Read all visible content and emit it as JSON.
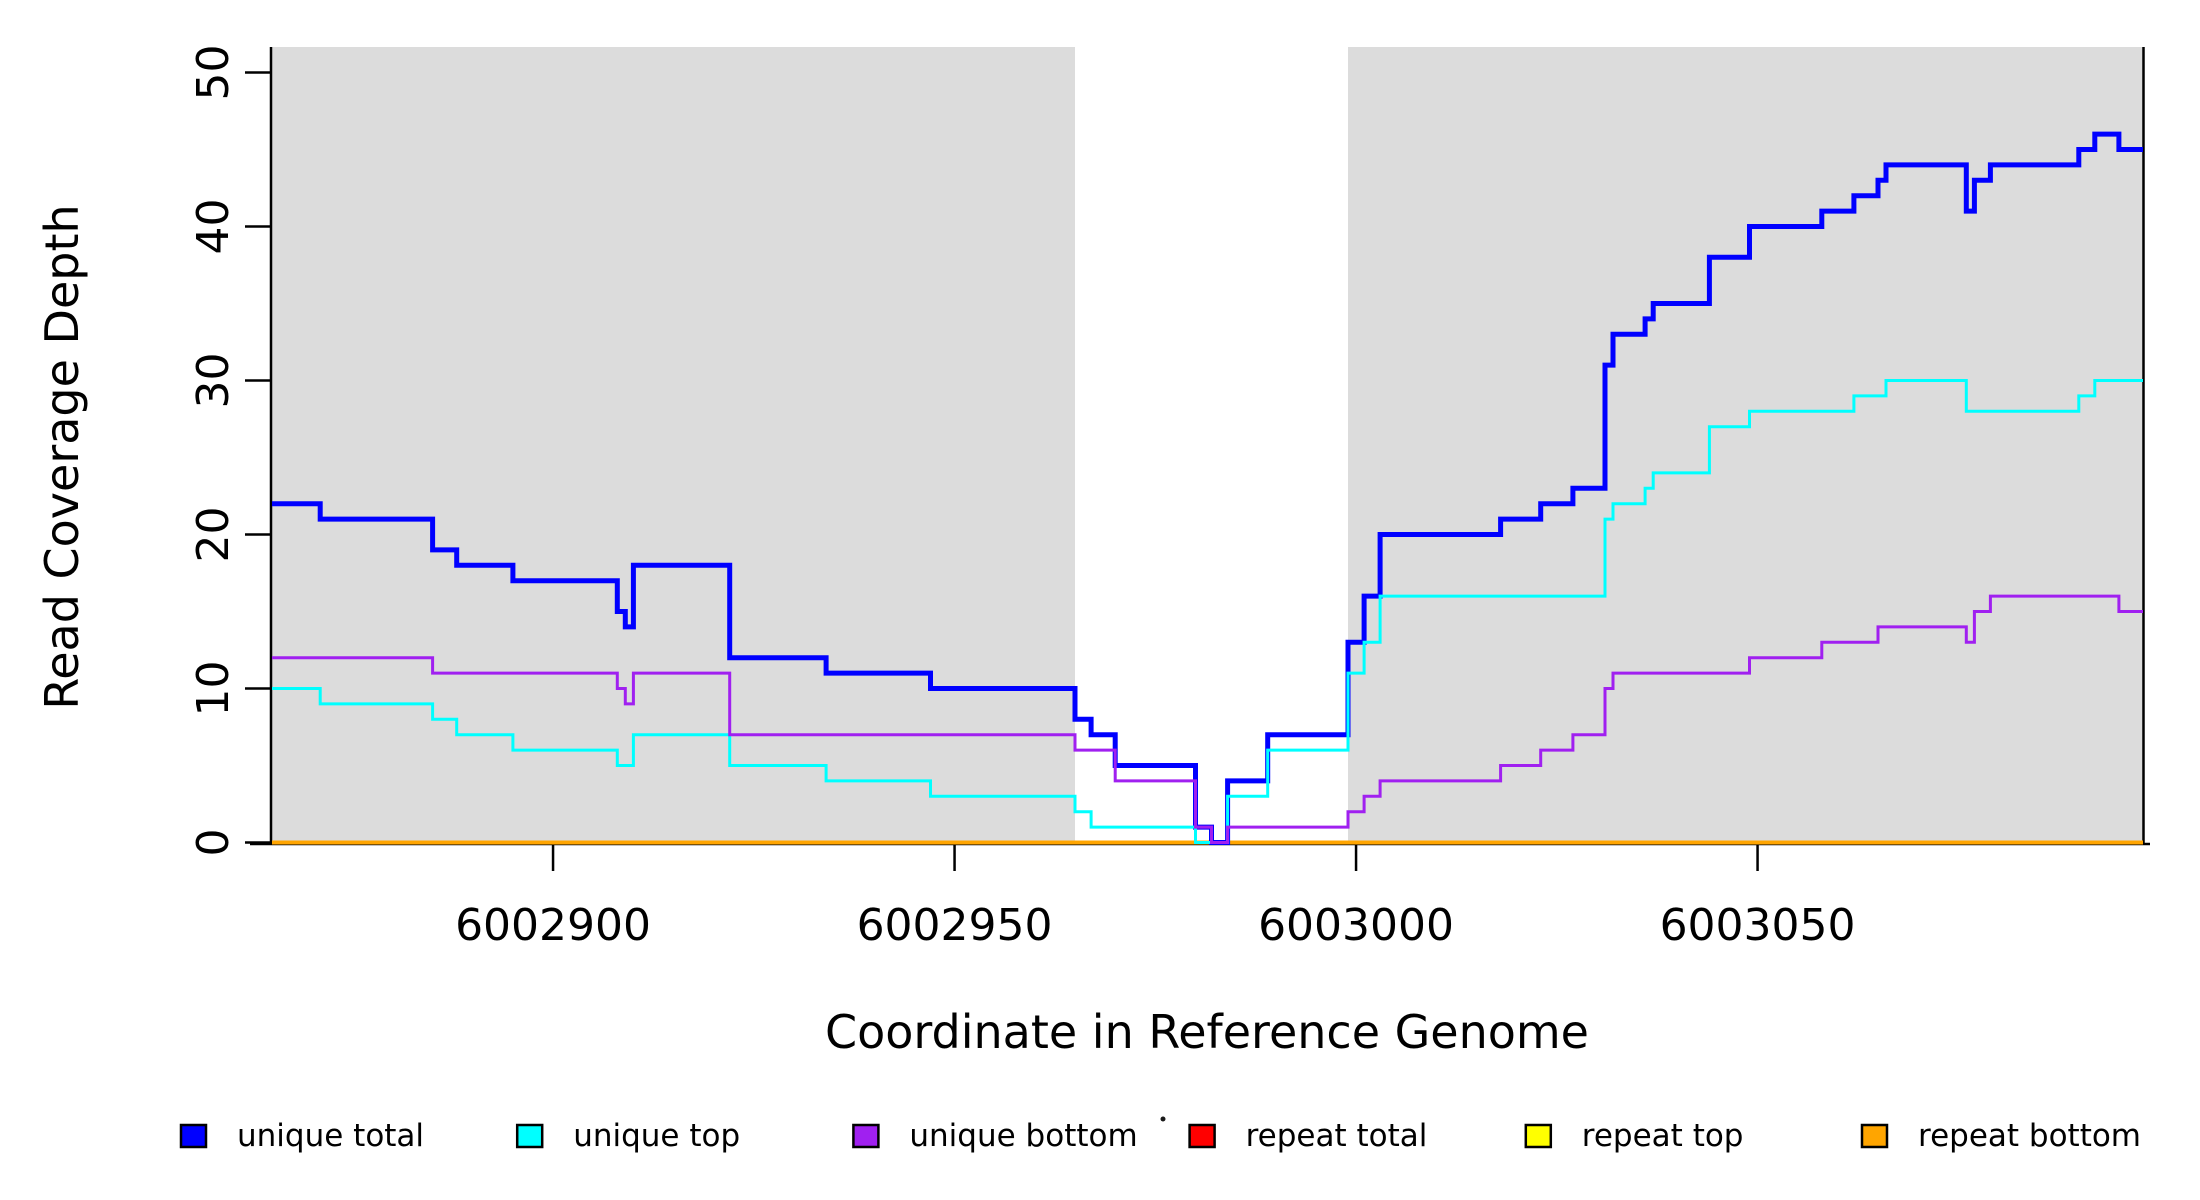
{
  "chart_data": {
    "type": "line",
    "step": true,
    "title": "",
    "xlabel": "Coordinate in Reference Genome",
    "ylabel": "Read Coverage Depth",
    "x_range": [
      6002865,
      6003098
    ],
    "y_range": [
      0,
      50
    ],
    "grid": false,
    "x_ticks": [
      {
        "value": 6002900,
        "label": "6002900"
      },
      {
        "value": 6002950,
        "label": "6002950"
      },
      {
        "value": 6003000,
        "label": "6003000"
      },
      {
        "value": 6003050,
        "label": "6003050"
      }
    ],
    "y_ticks": [
      {
        "value": 0,
        "label": "0"
      },
      {
        "value": 10,
        "label": "10"
      },
      {
        "value": 20,
        "label": "20"
      },
      {
        "value": 30,
        "label": "30"
      },
      {
        "value": 40,
        "label": "40"
      },
      {
        "value": 50,
        "label": "50"
      }
    ],
    "shaded_regions": [
      {
        "from": 6002865,
        "to": 6002965
      },
      {
        "from": 6002999,
        "to": 6003098
      }
    ],
    "colors": {
      "shading": "#DCDCDC",
      "axis": "#000000",
      "background": "#FFFFFF",
      "unique_total": "#0000FF",
      "unique_top": "#00FFFF",
      "unique_bottom": "#A020F0",
      "repeat_total": "#FF0000",
      "repeat_top": "#FFFF00",
      "repeat_bottom": "#FFA500"
    },
    "series": [
      {
        "name": "repeat total",
        "color": "#FF0000",
        "stroke_width": 3,
        "points": [
          [
            6002865,
            0
          ]
        ]
      },
      {
        "name": "repeat top",
        "color": "#FFFF00",
        "stroke_width": 3,
        "points": [
          [
            6002865,
            0
          ]
        ]
      },
      {
        "name": "repeat bottom",
        "color": "#FFA500",
        "stroke_width": 4,
        "points": [
          [
            6002865,
            0
          ]
        ]
      },
      {
        "name": "unique total",
        "color": "#0000FF",
        "stroke_width": 5,
        "points": [
          [
            6002865,
            22
          ],
          [
            6002871,
            21
          ],
          [
            6002885,
            19
          ],
          [
            6002888,
            18
          ],
          [
            6002895,
            17
          ],
          [
            6002908,
            15
          ],
          [
            6002909,
            14
          ],
          [
            6002910,
            18
          ],
          [
            6002922,
            12
          ],
          [
            6002934,
            11
          ],
          [
            6002947,
            10
          ],
          [
            6002965,
            8
          ],
          [
            6002967,
            7
          ],
          [
            6002970,
            5
          ],
          [
            6002980,
            1
          ],
          [
            6002982,
            0
          ],
          [
            6002984,
            4
          ],
          [
            6002989,
            7
          ],
          [
            6002999,
            13
          ],
          [
            6003001,
            16
          ],
          [
            6003003,
            20
          ],
          [
            6003018,
            21
          ],
          [
            6003023,
            22
          ],
          [
            6003027,
            23
          ],
          [
            6003031,
            31
          ],
          [
            6003032,
            33
          ],
          [
            6003036,
            34
          ],
          [
            6003037,
            35
          ],
          [
            6003044,
            38
          ],
          [
            6003049,
            40
          ],
          [
            6003058,
            41
          ],
          [
            6003062,
            42
          ],
          [
            6003065,
            43
          ],
          [
            6003066,
            44
          ],
          [
            6003076,
            41
          ],
          [
            6003077,
            43
          ],
          [
            6003079,
            44
          ],
          [
            6003090,
            45
          ],
          [
            6003092,
            46
          ],
          [
            6003095,
            45
          ]
        ]
      },
      {
        "name": "unique top",
        "color": "#00FFFF",
        "stroke_width": 3,
        "points": [
          [
            6002865,
            10
          ],
          [
            6002871,
            9
          ],
          [
            6002885,
            8
          ],
          [
            6002888,
            7
          ],
          [
            6002895,
            6
          ],
          [
            6002908,
            5
          ],
          [
            6002910,
            7
          ],
          [
            6002922,
            5
          ],
          [
            6002934,
            4
          ],
          [
            6002947,
            3
          ],
          [
            6002965,
            2
          ],
          [
            6002967,
            1
          ],
          [
            6002980,
            0
          ],
          [
            6002984,
            3
          ],
          [
            6002989,
            6
          ],
          [
            6002999,
            11
          ],
          [
            6003001,
            13
          ],
          [
            6003003,
            16
          ],
          [
            6003031,
            21
          ],
          [
            6003032,
            22
          ],
          [
            6003036,
            23
          ],
          [
            6003037,
            24
          ],
          [
            6003044,
            27
          ],
          [
            6003049,
            28
          ],
          [
            6003062,
            29
          ],
          [
            6003066,
            30
          ],
          [
            6003076,
            28
          ],
          [
            6003090,
            29
          ],
          [
            6003092,
            30
          ]
        ]
      },
      {
        "name": "unique bottom",
        "color": "#A020F0",
        "stroke_width": 3,
        "points": [
          [
            6002865,
            12
          ],
          [
            6002885,
            11
          ],
          [
            6002908,
            10
          ],
          [
            6002909,
            9
          ],
          [
            6002910,
            11
          ],
          [
            6002922,
            7
          ],
          [
            6002965,
            6
          ],
          [
            6002970,
            4
          ],
          [
            6002980,
            1
          ],
          [
            6002982,
            0
          ],
          [
            6002984,
            1
          ],
          [
            6002999,
            2
          ],
          [
            6003001,
            3
          ],
          [
            6003003,
            4
          ],
          [
            6003018,
            5
          ],
          [
            6003023,
            6
          ],
          [
            6003027,
            7
          ],
          [
            6003031,
            10
          ],
          [
            6003032,
            11
          ],
          [
            6003049,
            12
          ],
          [
            6003058,
            13
          ],
          [
            6003065,
            14
          ],
          [
            6003076,
            13
          ],
          [
            6003077,
            15
          ],
          [
            6003079,
            16
          ],
          [
            6003095,
            15
          ]
        ]
      }
    ],
    "legend": {
      "position": "bottom",
      "entries": [
        {
          "label": "unique total",
          "color": "#0000FF"
        },
        {
          "label": "unique top",
          "color": "#00FFFF"
        },
        {
          "label": "unique bottom",
          "color": "#A020F0"
        },
        {
          "label": "repeat total",
          "color": "#FF0000"
        },
        {
          "label": "repeat top",
          "color": "#FFFF00"
        },
        {
          "label": "repeat bottom",
          "color": "#FFA500"
        }
      ]
    }
  }
}
